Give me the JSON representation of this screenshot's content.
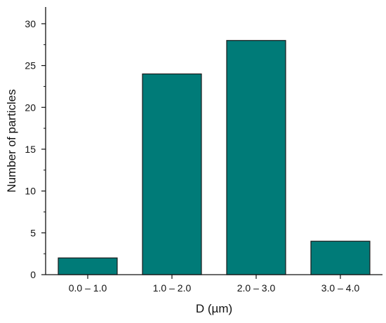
{
  "chart_data": {
    "type": "bar",
    "title": "",
    "xlabel": "D (µm)",
    "ylabel": "Number of particles",
    "categories": [
      "0.0 – 1.0",
      "1.0 – 2.0",
      "2.0 – 3.0",
      "3.0 – 4.0"
    ],
    "values": [
      2,
      24,
      28,
      4
    ],
    "ylim": [
      0,
      32
    ],
    "yticks": [
      0,
      5,
      10,
      15,
      20,
      25,
      30
    ],
    "ytick_labels": [
      "0",
      "5",
      "10",
      "15",
      "20",
      "25",
      "30"
    ],
    "grid": false,
    "legend": "none",
    "bar_color": "#007b78",
    "bar_edge_color": "#1a1a1a"
  }
}
